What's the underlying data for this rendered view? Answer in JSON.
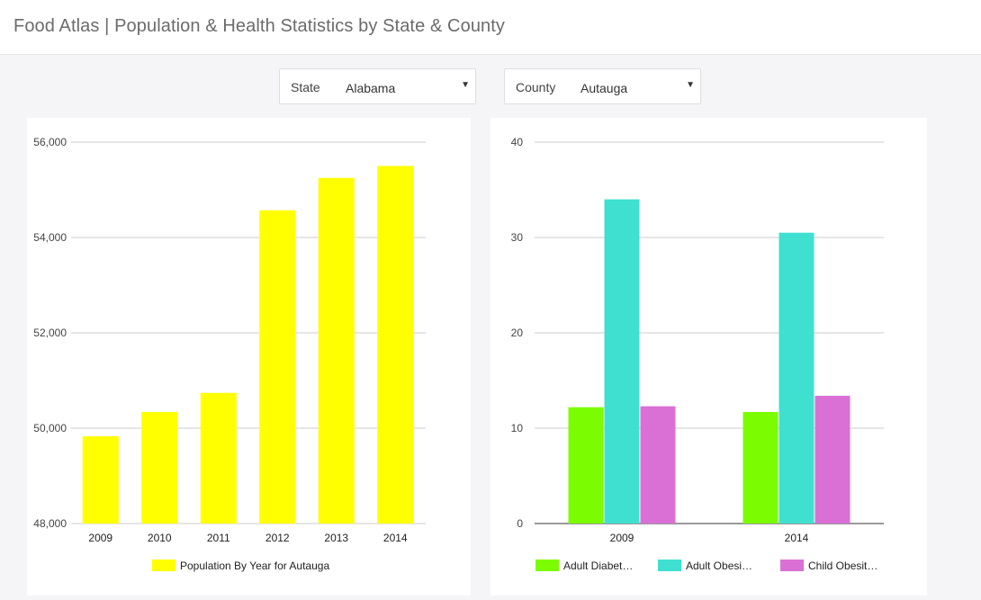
{
  "header": {
    "title": "Food Atlas | Population & Health Statistics by State & County"
  },
  "filters": {
    "state": {
      "label": "State",
      "value": "Alabama"
    },
    "county": {
      "label": "County",
      "value": "Autauga"
    }
  },
  "chart_data": [
    {
      "type": "bar",
      "categories": [
        "2009",
        "2010",
        "2011",
        "2012",
        "2013",
        "2014"
      ],
      "series": [
        {
          "name": "Population By Year for Autauga",
          "color": "#ffff00",
          "values": [
            49830,
            50340,
            50740,
            54570,
            55250,
            55500
          ]
        }
      ],
      "ylim": [
        48000,
        56000
      ],
      "yticks": [
        48000,
        50000,
        52000,
        54000,
        56000
      ],
      "ytick_labels": [
        "48,000",
        "50,000",
        "52,000",
        "54,000",
        "56,000"
      ],
      "grid": true,
      "legend": "bottom"
    },
    {
      "type": "bar",
      "categories": [
        "2009",
        "2014"
      ],
      "series": [
        {
          "name": "Adult Diabet…",
          "color": "#7cfc00",
          "values": [
            12.2,
            11.7
          ]
        },
        {
          "name": "Adult Obesi…",
          "color": "#40e0d0",
          "values": [
            34.0,
            30.5
          ]
        },
        {
          "name": "Child Obesit…",
          "color": "#da70d6",
          "values": [
            12.3,
            13.4
          ]
        }
      ],
      "ylim": [
        0,
        40
      ],
      "yticks": [
        0,
        10,
        20,
        30,
        40
      ],
      "ytick_labels": [
        "0",
        "10",
        "20",
        "30",
        "40"
      ],
      "grid": true,
      "legend": "bottom"
    }
  ]
}
